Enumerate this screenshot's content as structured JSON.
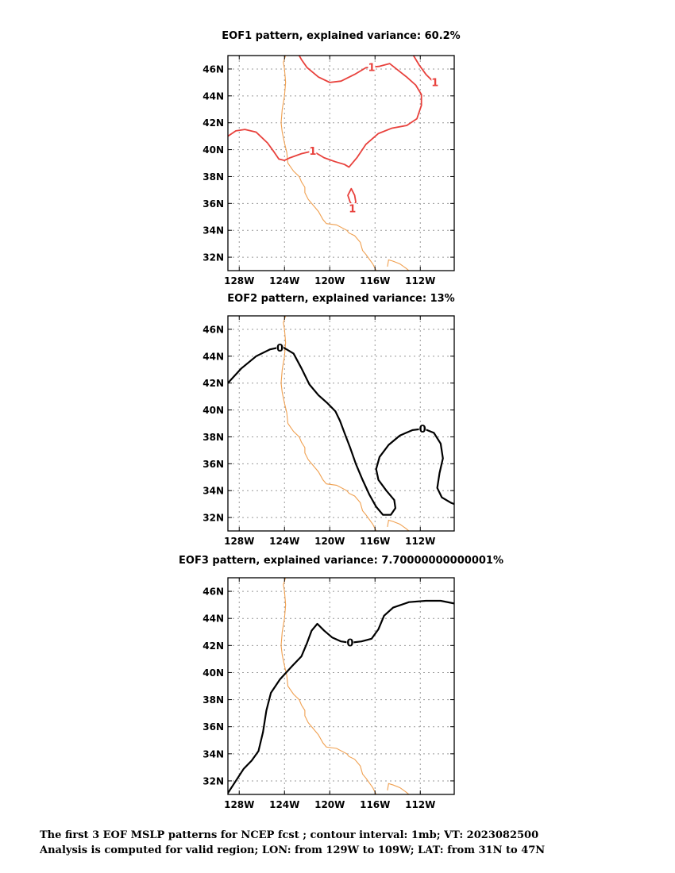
{
  "chart_data": [
    {
      "type": "contour-map",
      "title": "EOF1 pattern, explained variance: 60.2%",
      "x_ticks": [
        "128W",
        "124W",
        "120W",
        "116W",
        "112W"
      ],
      "y_ticks": [
        "46N",
        "44N",
        "42N",
        "40N",
        "38N",
        "36N",
        "34N",
        "32N"
      ],
      "xlim": [
        -129,
        -109
      ],
      "ylim": [
        31,
        47
      ],
      "grid": true,
      "contour_color": "#e8413c",
      "contours": [
        {
          "level": "1",
          "points": [
            [
              -129,
              41
            ],
            [
              -128.3,
              41.4
            ],
            [
              -127.5,
              41.5
            ],
            [
              -126.5,
              41.3
            ],
            [
              -125.5,
              40.5
            ],
            [
              -124.9,
              39.8
            ],
            [
              -124.5,
              39.3
            ],
            [
              -124,
              39.2
            ],
            [
              -123.5,
              39.4
            ],
            [
              -122.5,
              39.7
            ],
            [
              -121.5,
              39.9
            ],
            [
              -120.5,
              39.4
            ],
            [
              -119.5,
              39.1
            ],
            [
              -118.7,
              38.9
            ],
            [
              -118.3,
              38.7
            ],
            [
              -117.6,
              39.4
            ],
            [
              -116.8,
              40.4
            ],
            [
              -115.7,
              41.2
            ],
            [
              -114.5,
              41.6
            ],
            [
              -113.2,
              41.8
            ],
            [
              -112.3,
              42.3
            ],
            [
              -111.9,
              43.3
            ],
            [
              -111.9,
              44.1
            ],
            [
              -112.4,
              44.8
            ],
            [
              -113.2,
              45.4
            ],
            [
              -114.1,
              46
            ],
            [
              -114.7,
              46.4
            ],
            [
              -115.6,
              46.2
            ],
            [
              -116.8,
              46.1
            ],
            [
              -117.8,
              45.6
            ],
            [
              -119,
              45.1
            ],
            [
              -120,
              45
            ],
            [
              -121,
              45.4
            ],
            [
              -122,
              46.1
            ],
            [
              -122.5,
              46.7
            ],
            [
              -122.7,
              47
            ]
          ]
        },
        {
          "level": "1",
          "points": [
            [
              -112.6,
              47
            ],
            [
              -112.1,
              46.3
            ],
            [
              -111.5,
              45.6
            ],
            [
              -110.9,
              45.1
            ],
            [
              -110.5,
              45
            ]
          ]
        },
        {
          "level": "1",
          "points": [
            [
              -117.8,
              35.6
            ],
            [
              -118.2,
              36.1
            ],
            [
              -118.4,
              36.6
            ],
            [
              -118.1,
              37.1
            ],
            [
              -117.8,
              36.6
            ],
            [
              -117.7,
              36.1
            ],
            [
              -118,
              35.6
            ]
          ]
        }
      ],
      "contour_labels": [
        {
          "text": "1",
          "x": -121.5,
          "y": 39.9
        },
        {
          "text": "1",
          "x": -116.3,
          "y": 46.1
        },
        {
          "text": "1",
          "x": -110.7,
          "y": 45
        },
        {
          "text": "1",
          "x": -118,
          "y": 35.6
        }
      ]
    },
    {
      "type": "contour-map",
      "title": "EOF2 pattern, explained variance: 13%",
      "x_ticks": [
        "128W",
        "124W",
        "120W",
        "116W",
        "112W"
      ],
      "y_ticks": [
        "46N",
        "44N",
        "42N",
        "40N",
        "38N",
        "36N",
        "34N",
        "32N"
      ],
      "xlim": [
        -129,
        -109
      ],
      "ylim": [
        31,
        47
      ],
      "grid": true,
      "contour_color": "#000000",
      "contours": [
        {
          "level": "0",
          "points": [
            [
              -129,
              42
            ],
            [
              -127.8,
              43.1
            ],
            [
              -126.5,
              44
            ],
            [
              -125.3,
              44.5
            ],
            [
              -124.2,
              44.7
            ],
            [
              -123.2,
              44.2
            ],
            [
              -122.5,
              43.1
            ],
            [
              -121.8,
              41.9
            ],
            [
              -121,
              41.1
            ],
            [
              -120.2,
              40.5
            ],
            [
              -119.5,
              39.9
            ],
            [
              -119.1,
              39.2
            ],
            [
              -118.7,
              38.3
            ],
            [
              -118.2,
              37.2
            ],
            [
              -117.7,
              36
            ],
            [
              -117.1,
              34.8
            ],
            [
              -116.5,
              33.7
            ],
            [
              -115.9,
              32.8
            ],
            [
              -115.3,
              32.2
            ],
            [
              -114.6,
              32.2
            ],
            [
              -114.2,
              32.7
            ],
            [
              -114.3,
              33.3
            ],
            [
              -115,
              34
            ],
            [
              -115.7,
              34.8
            ],
            [
              -115.9,
              35.6
            ],
            [
              -115.6,
              36.5
            ],
            [
              -114.8,
              37.4
            ],
            [
              -113.8,
              38.1
            ],
            [
              -112.7,
              38.5
            ],
            [
              -111.7,
              38.6
            ],
            [
              -110.8,
              38.3
            ],
            [
              -110.2,
              37.5
            ],
            [
              -110,
              36.4
            ],
            [
              -110.3,
              35.3
            ],
            [
              -110.5,
              34.2
            ],
            [
              -110.1,
              33.5
            ],
            [
              -109.3,
              33.1
            ],
            [
              -109,
              33
            ]
          ]
        }
      ],
      "contour_labels": [
        {
          "text": "0",
          "x": -124.4,
          "y": 44.6
        },
        {
          "text": "0",
          "x": -111.8,
          "y": 38.6
        }
      ]
    },
    {
      "type": "contour-map",
      "title": "EOF3 pattern, explained variance: 7.70000000000001%",
      "x_ticks": [
        "128W",
        "124W",
        "120W",
        "116W",
        "112W"
      ],
      "y_ticks": [
        "46N",
        "44N",
        "42N",
        "40N",
        "38N",
        "36N",
        "34N",
        "32N"
      ],
      "xlim": [
        -129,
        -109
      ],
      "ylim": [
        31,
        47
      ],
      "grid": true,
      "contour_color": "#000000",
      "contours": [
        {
          "level": "0",
          "points": [
            [
              -129,
              31.1
            ],
            [
              -128.3,
              32
            ],
            [
              -127.6,
              32.9
            ],
            [
              -126.9,
              33.5
            ],
            [
              -126.3,
              34.2
            ],
            [
              -125.9,
              35.6
            ],
            [
              -125.6,
              37.2
            ],
            [
              -125.2,
              38.5
            ],
            [
              -124.4,
              39.5
            ],
            [
              -123.3,
              40.5
            ],
            [
              -122.5,
              41.2
            ],
            [
              -122,
              42.2
            ],
            [
              -121.6,
              43.1
            ],
            [
              -121.1,
              43.6
            ],
            [
              -120.5,
              43.1
            ],
            [
              -119.8,
              42.6
            ],
            [
              -119,
              42.3
            ],
            [
              -118.2,
              42.2
            ],
            [
              -117.2,
              42.3
            ],
            [
              -116.3,
              42.5
            ],
            [
              -115.7,
              43.2
            ],
            [
              -115.2,
              44.2
            ],
            [
              -114.4,
              44.8
            ],
            [
              -113,
              45.2
            ],
            [
              -111.5,
              45.3
            ],
            [
              -110.2,
              45.3
            ],
            [
              -109,
              45.1
            ]
          ]
        }
      ],
      "contour_labels": [
        {
          "text": "0",
          "x": -118.2,
          "y": 42.2
        }
      ]
    }
  ],
  "caption": {
    "line1": "The first 3 EOF MSLP patterns for NCEP fcst ; contour interval: 1mb; VT: 2023082500",
    "line2": "Analysis is computed for valid region; LON: from 129W to 109W; LAT: from 31N to 47N"
  },
  "coastline_color": "#f0a050"
}
